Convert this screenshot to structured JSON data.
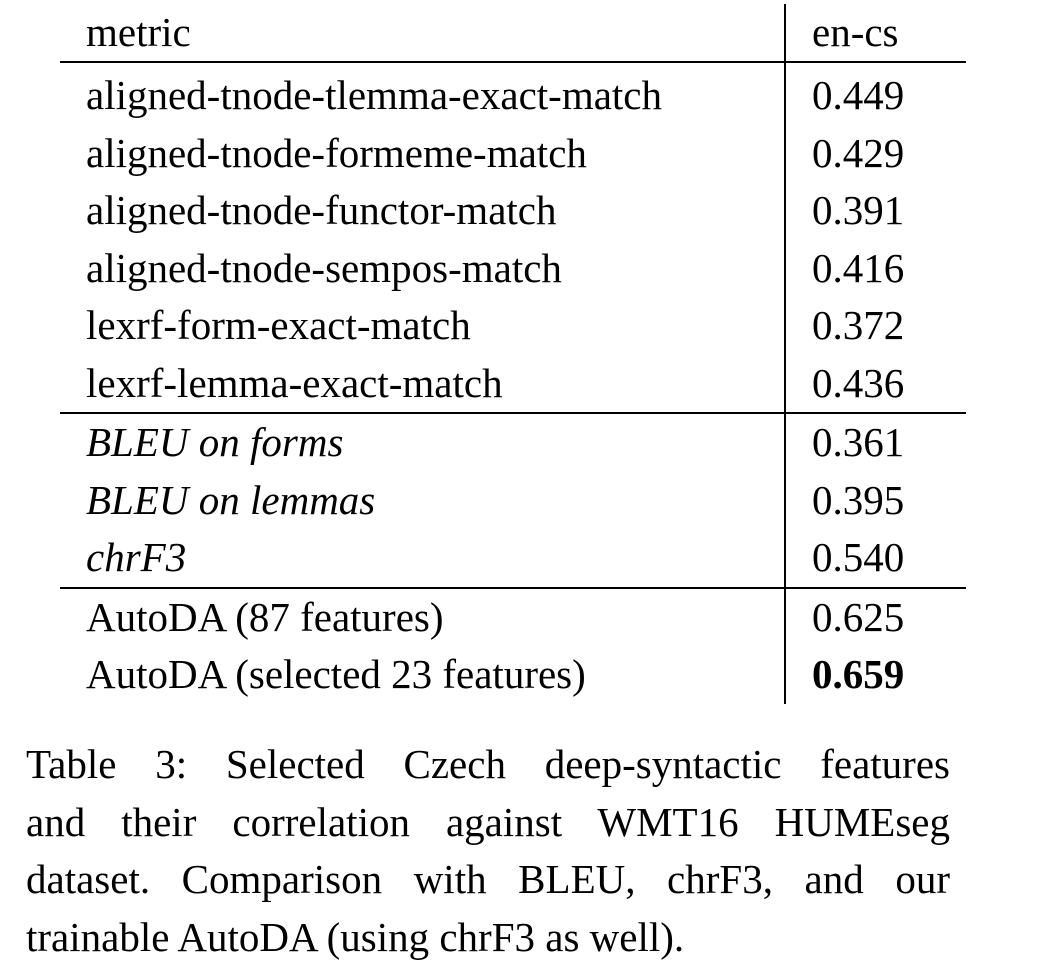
{
  "table": {
    "header": {
      "metric": "metric",
      "value": "en-cs"
    },
    "groups": [
      {
        "style": "normal",
        "rows": [
          {
            "metric": "aligned-tnode-tlemma-exact-match",
            "value": "0.449"
          },
          {
            "metric": "aligned-tnode-formeme-match",
            "value": "0.429"
          },
          {
            "metric": "aligned-tnode-functor-match",
            "value": "0.391"
          },
          {
            "metric": "aligned-tnode-sempos-match",
            "value": "0.416"
          },
          {
            "metric": "lexrf-form-exact-match",
            "value": "0.372"
          },
          {
            "metric": "lexrf-lemma-exact-match",
            "value": "0.436"
          }
        ]
      },
      {
        "style": "italic",
        "rows": [
          {
            "metric": "BLEU on forms",
            "value": "0.361"
          },
          {
            "metric": "BLEU on lemmas",
            "value": "0.395"
          },
          {
            "metric": "chrF3",
            "value": "0.540"
          }
        ]
      },
      {
        "style": "normal",
        "rows": [
          {
            "metric": "AutoDA (87 features)",
            "value": "0.625"
          },
          {
            "metric": "AutoDA (selected 23 features)",
            "value": "0.659",
            "bold_value": true
          }
        ]
      }
    ]
  },
  "caption": {
    "lines": [
      "Table 3:  Selected Czech deep-syntactic features",
      "and their correlation against WMT16 HUMEseg",
      "dataset.  Comparison with BLEU, chrF3, and our",
      "trainable AutoDA (using chrF3 as well)."
    ]
  }
}
